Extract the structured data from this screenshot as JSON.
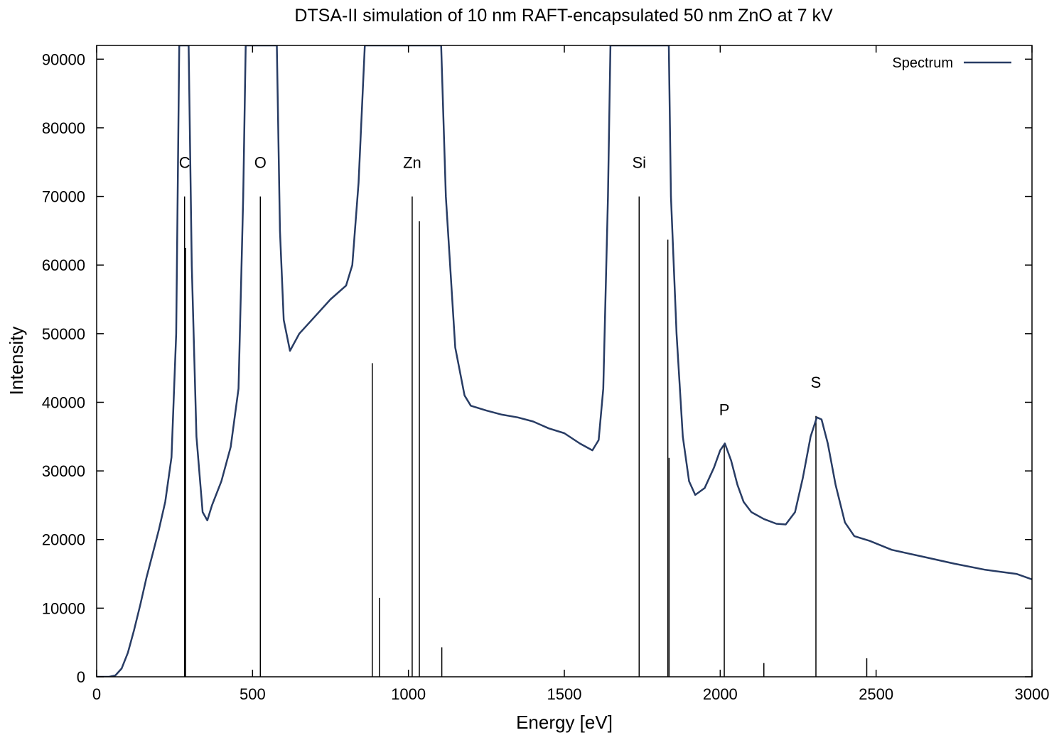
{
  "chart_data": {
    "type": "line",
    "title": "DTSA-II simulation of 10 nm RAFT-encapsulated 50 nm ZnO at 7 kV",
    "xlabel": "Energy [eV]",
    "ylabel": "Intensity",
    "xlim": [
      0,
      3000
    ],
    "ylim": [
      0,
      92000
    ],
    "x_ticks": [
      0,
      500,
      1000,
      1500,
      2000,
      2500,
      3000
    ],
    "y_ticks": [
      0,
      10000,
      20000,
      30000,
      40000,
      50000,
      60000,
      70000,
      80000,
      90000
    ],
    "grid": false,
    "legend_position": "top-right",
    "series": [
      {
        "name": "Spectrum",
        "color": "#283c64",
        "points": [
          [
            0,
            0
          ],
          [
            40,
            0
          ],
          [
            60,
            200
          ],
          [
            80,
            1200
          ],
          [
            100,
            3500
          ],
          [
            120,
            6800
          ],
          [
            140,
            10500
          ],
          [
            160,
            14500
          ],
          [
            180,
            18000
          ],
          [
            200,
            21500
          ],
          [
            220,
            25500
          ],
          [
            240,
            32000
          ],
          [
            255,
            50000
          ],
          [
            265,
            92000
          ],
          [
            295,
            92000
          ],
          [
            305,
            60000
          ],
          [
            320,
            35000
          ],
          [
            340,
            24000
          ],
          [
            355,
            22800
          ],
          [
            370,
            25000
          ],
          [
            400,
            28500
          ],
          [
            430,
            33500
          ],
          [
            455,
            42000
          ],
          [
            470,
            70000
          ],
          [
            478,
            92000
          ],
          [
            578,
            92000
          ],
          [
            588,
            65000
          ],
          [
            600,
            52000
          ],
          [
            620,
            47500
          ],
          [
            650,
            50000
          ],
          [
            700,
            52500
          ],
          [
            750,
            55000
          ],
          [
            800,
            57000
          ],
          [
            820,
            60000
          ],
          [
            840,
            72000
          ],
          [
            860,
            92000
          ],
          [
            1105,
            92000
          ],
          [
            1120,
            70000
          ],
          [
            1150,
            48000
          ],
          [
            1180,
            41000
          ],
          [
            1200,
            39500
          ],
          [
            1250,
            38800
          ],
          [
            1300,
            38200
          ],
          [
            1350,
            37800
          ],
          [
            1400,
            37200
          ],
          [
            1450,
            36200
          ],
          [
            1500,
            35500
          ],
          [
            1550,
            34000
          ],
          [
            1590,
            33000
          ],
          [
            1610,
            34500
          ],
          [
            1625,
            42000
          ],
          [
            1640,
            70000
          ],
          [
            1648,
            92000
          ],
          [
            1835,
            92000
          ],
          [
            1842,
            70000
          ],
          [
            1860,
            50000
          ],
          [
            1880,
            35000
          ],
          [
            1900,
            28500
          ],
          [
            1920,
            26500
          ],
          [
            1950,
            27500
          ],
          [
            1980,
            30500
          ],
          [
            2000,
            33000
          ],
          [
            2015,
            34000
          ],
          [
            2035,
            31500
          ],
          [
            2055,
            28000
          ],
          [
            2075,
            25500
          ],
          [
            2100,
            24000
          ],
          [
            2140,
            23000
          ],
          [
            2180,
            22300
          ],
          [
            2210,
            22200
          ],
          [
            2240,
            24000
          ],
          [
            2265,
            29000
          ],
          [
            2290,
            35000
          ],
          [
            2310,
            37800
          ],
          [
            2325,
            37500
          ],
          [
            2345,
            34000
          ],
          [
            2370,
            28000
          ],
          [
            2400,
            22500
          ],
          [
            2430,
            20500
          ],
          [
            2480,
            19800
          ],
          [
            2550,
            18500
          ],
          [
            2650,
            17500
          ],
          [
            2750,
            16500
          ],
          [
            2850,
            15600
          ],
          [
            2950,
            15000
          ],
          [
            3000,
            14200
          ]
        ]
      }
    ],
    "markers": [
      {
        "x": 282,
        "y": 70000,
        "label": "C"
      },
      {
        "x": 285,
        "y": 62500,
        "label": ""
      },
      {
        "x": 525,
        "y": 70000,
        "label": "O"
      },
      {
        "x": 884,
        "y": 45700,
        "label": ""
      },
      {
        "x": 907,
        "y": 11500,
        "label": ""
      },
      {
        "x": 1012,
        "y": 70000,
        "label": "Zn"
      },
      {
        "x": 1035,
        "y": 66400,
        "label": ""
      },
      {
        "x": 1107,
        "y": 4300,
        "label": ""
      },
      {
        "x": 1740,
        "y": 70000,
        "label": "Si"
      },
      {
        "x": 1832,
        "y": 63700,
        "label": ""
      },
      {
        "x": 1836,
        "y": 31900,
        "label": ""
      },
      {
        "x": 2013,
        "y": 34000,
        "label": "P"
      },
      {
        "x": 2140,
        "y": 2000,
        "label": ""
      },
      {
        "x": 2307,
        "y": 38000,
        "label": "S"
      },
      {
        "x": 2470,
        "y": 2700,
        "label": ""
      }
    ]
  }
}
